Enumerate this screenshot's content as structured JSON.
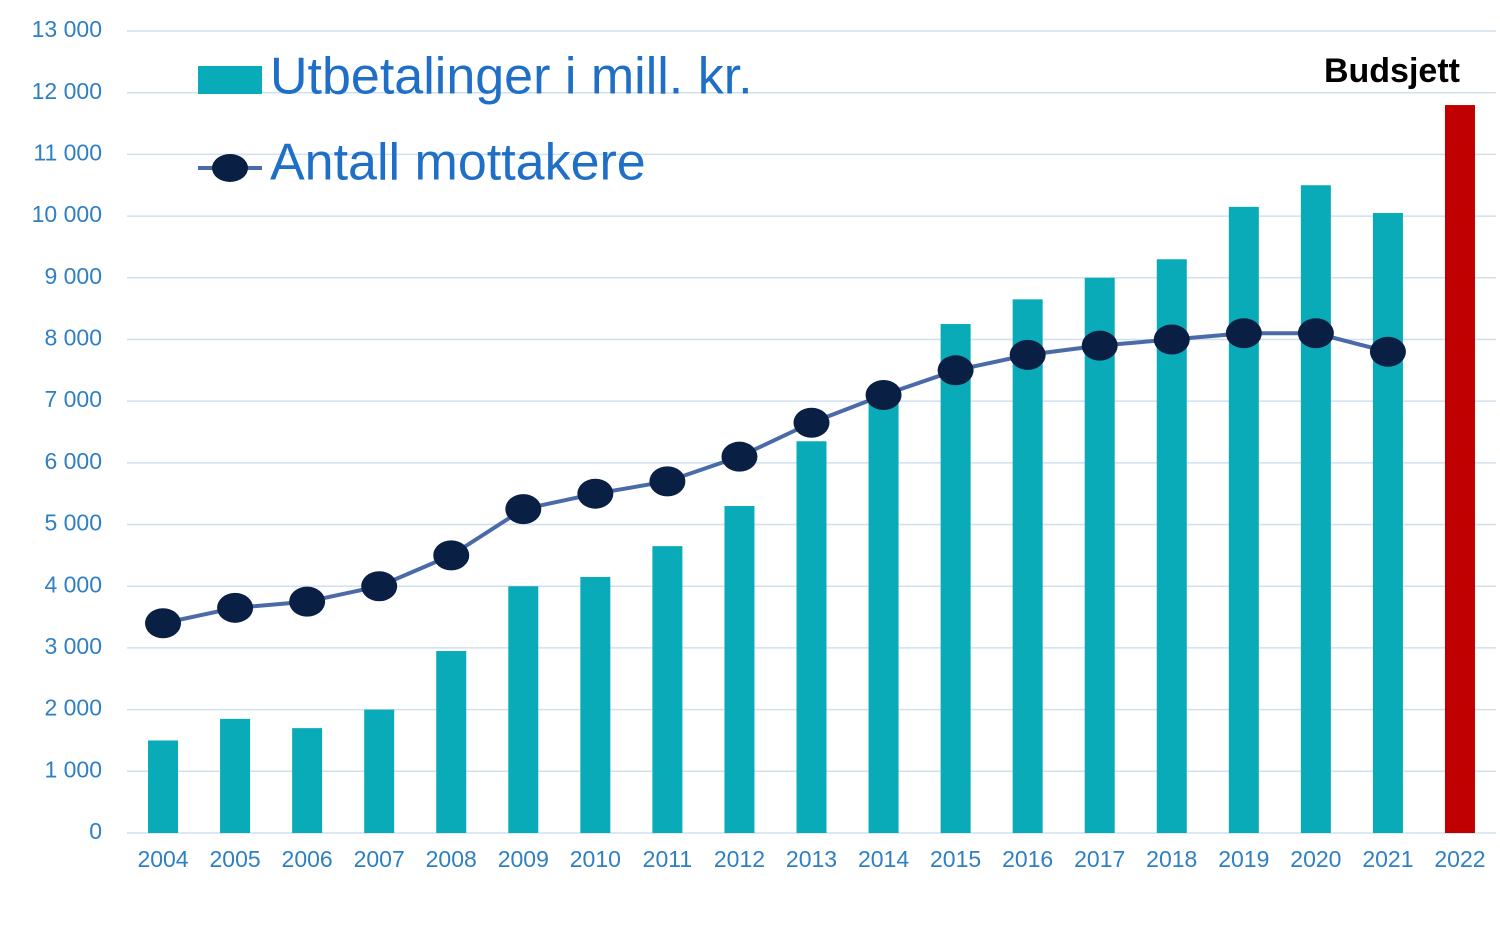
{
  "chart_data": {
    "type": "bar_line",
    "categories": [
      "2004",
      "2005",
      "2006",
      "2007",
      "2008",
      "2009",
      "2010",
      "2011",
      "2012",
      "2013",
      "2014",
      "2015",
      "2016",
      "2017",
      "2018",
      "2019",
      "2020",
      "2021",
      "2022"
    ],
    "series": [
      {
        "name": "Utbetalinger i mill. kr.",
        "type": "bar",
        "color": "#0aabb9",
        "colors": [
          "#0aabb9",
          "#0aabb9",
          "#0aabb9",
          "#0aabb9",
          "#0aabb9",
          "#0aabb9",
          "#0aabb9",
          "#0aabb9",
          "#0aabb9",
          "#0aabb9",
          "#0aabb9",
          "#0aabb9",
          "#0aabb9",
          "#0aabb9",
          "#0aabb9",
          "#0aabb9",
          "#0aabb9",
          "#0aabb9",
          "#c00000"
        ],
        "values": [
          1500,
          1850,
          1700,
          2000,
          2950,
          4000,
          4150,
          4650,
          5300,
          6350,
          7000,
          8250,
          8650,
          9000,
          9300,
          10150,
          10500,
          10050,
          11800
        ]
      },
      {
        "name": "Antall mottakere",
        "type": "line",
        "color": "#4a6aa8",
        "marker_color": "#0a1f44",
        "values": [
          3400,
          3650,
          3750,
          4000,
          4500,
          5250,
          5500,
          5700,
          6100,
          6650,
          7100,
          7500,
          7750,
          7900,
          8000,
          8100,
          8100,
          7800,
          null
        ]
      }
    ],
    "annotation": "Budsjett",
    "ylim": [
      0,
      13000
    ],
    "yticks": [
      0,
      {
        "value": 1000,
        "label": "1 000"
      },
      {
        "value": 2000,
        "label": "2 000"
      },
      {
        "value": 3000,
        "label": "3 000"
      },
      {
        "value": 4000,
        "label": "4 000"
      },
      {
        "value": 5000,
        "label": "5 000"
      },
      {
        "value": 6000,
        "label": "6 000"
      },
      {
        "value": 7000,
        "label": "7 000"
      },
      {
        "value": 8000,
        "label": "8 000"
      },
      {
        "value": 9000,
        "label": "9 000"
      },
      {
        "value": 10000,
        "label": "10 000"
      },
      {
        "value": 11000,
        "label": "11 000"
      },
      {
        "value": 12000,
        "label": "12 000"
      },
      {
        "value": 13000,
        "label": "13 000"
      }
    ],
    "grid": true
  }
}
